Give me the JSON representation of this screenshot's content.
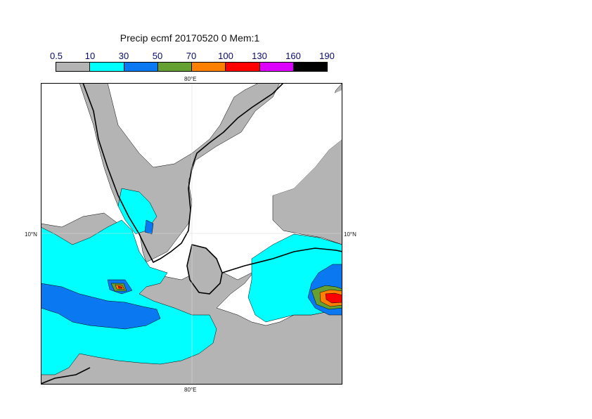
{
  "title": "Precip ecmf 20170520 0 Mem:1",
  "legend": {
    "labels": [
      "0.5",
      "10",
      "30",
      "50",
      "70",
      "100",
      "130",
      "160",
      "190"
    ],
    "colors": [
      "#b4b4b4",
      "#00ffff",
      "#0a78f0",
      "#64a032",
      "#ff7f00",
      "#ff0000",
      "#dc00ff",
      "#000000"
    ]
  },
  "axes": {
    "lon_top": "80°E",
    "lon_bottom": "80°E",
    "lat_left": "10°N",
    "lat_right": "10°N"
  }
}
